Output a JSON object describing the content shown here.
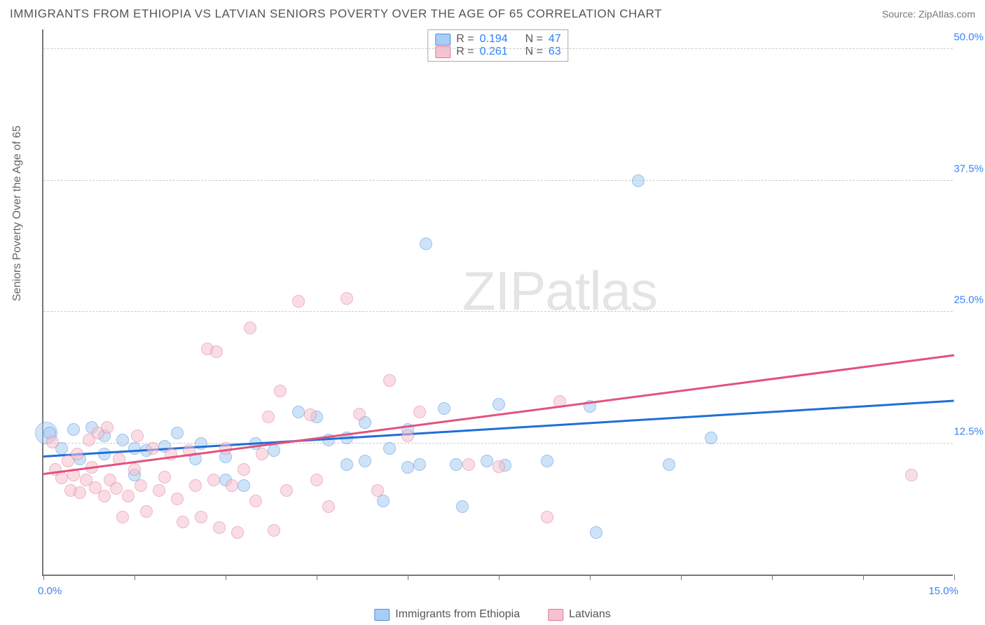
{
  "title": "IMMIGRANTS FROM ETHIOPIA VS LATVIAN SENIORS POVERTY OVER THE AGE OF 65 CORRELATION CHART",
  "source_label": "Source: ",
  "source_name": "ZipAtlas.com",
  "watermark": "ZIPatlas",
  "chart": {
    "type": "scatter",
    "xlim": [
      0,
      15
    ],
    "ylim": [
      0,
      52
    ],
    "xticks": [
      0,
      1.5,
      3,
      4.5,
      6,
      7.5,
      9,
      10.5,
      12,
      13.5,
      15
    ],
    "ygrid": [
      12.5,
      25,
      37.5,
      50
    ],
    "xlabel_min": "0.0%",
    "xlabel_max": "15.0%",
    "yaxis_title": "Seniors Poverty Over the Age of 65",
    "ytick_labels": [
      "12.5%",
      "25.0%",
      "37.5%",
      "50.0%"
    ],
    "background_color": "#ffffff",
    "grid_color": "#cccccc",
    "axis_color": "#777777",
    "tick_label_color": "#3b82f6",
    "point_radius": 9,
    "point_opacity": 0.55,
    "series": [
      {
        "id": "ethiopia",
        "label": "Immigrants from Ethiopia",
        "fill": "#a9cdf4",
        "stroke": "#4b8fdd",
        "line_color": "#1d6fd8",
        "r_value": "0.194",
        "n_value": "47",
        "trend": {
          "x1": 0,
          "y1": 11.2,
          "x2": 15,
          "y2": 16.5
        },
        "points": [
          [
            0.1,
            13.5
          ],
          [
            0.3,
            12.0
          ],
          [
            0.5,
            13.8
          ],
          [
            0.6,
            11.0
          ],
          [
            0.8,
            14.0
          ],
          [
            1.0,
            11.5
          ],
          [
            1.0,
            13.2
          ],
          [
            1.3,
            12.8
          ],
          [
            1.5,
            12.0
          ],
          [
            1.5,
            9.5
          ],
          [
            1.7,
            11.8
          ],
          [
            2.0,
            12.2
          ],
          [
            2.2,
            13.5
          ],
          [
            2.5,
            11.0
          ],
          [
            2.6,
            12.5
          ],
          [
            3.0,
            11.2
          ],
          [
            3.0,
            9.0
          ],
          [
            3.3,
            8.5
          ],
          [
            3.5,
            12.5
          ],
          [
            3.8,
            11.8
          ],
          [
            4.2,
            15.5
          ],
          [
            4.5,
            15.0
          ],
          [
            4.7,
            12.8
          ],
          [
            5.0,
            10.5
          ],
          [
            5.0,
            13.0
          ],
          [
            5.3,
            14.5
          ],
          [
            5.3,
            10.8
          ],
          [
            5.6,
            7.0
          ],
          [
            5.7,
            12.0
          ],
          [
            6.0,
            10.2
          ],
          [
            6.0,
            13.8
          ],
          [
            6.2,
            10.5
          ],
          [
            6.3,
            31.5
          ],
          [
            6.6,
            15.8
          ],
          [
            6.8,
            10.5
          ],
          [
            6.9,
            6.5
          ],
          [
            7.3,
            10.8
          ],
          [
            7.5,
            16.2
          ],
          [
            7.6,
            10.4
          ],
          [
            8.3,
            10.8
          ],
          [
            9.0,
            16.0
          ],
          [
            9.1,
            4.0
          ],
          [
            9.8,
            37.5
          ],
          [
            10.3,
            10.5
          ],
          [
            11.0,
            13.0
          ]
        ],
        "big_point": [
          0.05,
          13.5,
          16
        ]
      },
      {
        "id": "latvians",
        "label": "Latvians",
        "fill": "#f6c2cf",
        "stroke": "#e37795",
        "line_color": "#e3517c",
        "r_value": "0.261",
        "n_value": "63",
        "trend": {
          "x1": 0,
          "y1": 9.5,
          "x2": 15,
          "y2": 20.8
        },
        "points": [
          [
            0.15,
            12.6
          ],
          [
            0.2,
            10.0
          ],
          [
            0.3,
            9.2
          ],
          [
            0.4,
            10.8
          ],
          [
            0.45,
            8.0
          ],
          [
            0.5,
            9.5
          ],
          [
            0.55,
            11.5
          ],
          [
            0.6,
            7.8
          ],
          [
            0.7,
            9.0
          ],
          [
            0.75,
            12.8
          ],
          [
            0.8,
            10.2
          ],
          [
            0.85,
            8.3
          ],
          [
            0.9,
            13.5
          ],
          [
            1.0,
            7.5
          ],
          [
            1.05,
            14.0
          ],
          [
            1.1,
            9.0
          ],
          [
            1.2,
            8.2
          ],
          [
            1.25,
            11.0
          ],
          [
            1.3,
            5.5
          ],
          [
            1.4,
            7.5
          ],
          [
            1.5,
            10.0
          ],
          [
            1.55,
            13.2
          ],
          [
            1.6,
            8.5
          ],
          [
            1.7,
            6.0
          ],
          [
            1.8,
            12.0
          ],
          [
            1.9,
            8.0
          ],
          [
            2.0,
            9.3
          ],
          [
            2.1,
            11.5
          ],
          [
            2.2,
            7.2
          ],
          [
            2.3,
            5.0
          ],
          [
            2.4,
            11.8
          ],
          [
            2.5,
            8.5
          ],
          [
            2.6,
            5.5
          ],
          [
            2.7,
            21.5
          ],
          [
            2.8,
            9.0
          ],
          [
            2.85,
            21.2
          ],
          [
            2.9,
            4.5
          ],
          [
            3.0,
            12.0
          ],
          [
            3.1,
            8.5
          ],
          [
            3.2,
            4.0
          ],
          [
            3.3,
            10.0
          ],
          [
            3.4,
            23.5
          ],
          [
            3.5,
            7.0
          ],
          [
            3.6,
            11.5
          ],
          [
            3.7,
            15.0
          ],
          [
            3.8,
            4.2
          ],
          [
            3.9,
            17.5
          ],
          [
            4.0,
            8.0
          ],
          [
            4.2,
            26.0
          ],
          [
            4.4,
            15.2
          ],
          [
            4.5,
            9.0
          ],
          [
            4.7,
            6.5
          ],
          [
            5.0,
            26.3
          ],
          [
            5.2,
            15.3
          ],
          [
            5.5,
            8.0
          ],
          [
            5.7,
            18.5
          ],
          [
            6.0,
            13.2
          ],
          [
            6.2,
            15.5
          ],
          [
            7.0,
            10.5
          ],
          [
            7.5,
            10.3
          ],
          [
            8.3,
            5.5
          ],
          [
            8.5,
            16.5
          ],
          [
            14.3,
            9.5
          ]
        ]
      }
    ]
  },
  "stat_labels": {
    "r": "R =",
    "n": "N ="
  }
}
